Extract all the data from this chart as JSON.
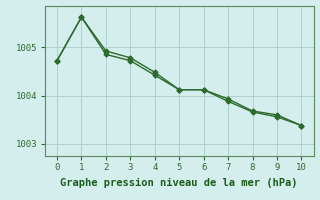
{
  "title": "Graphe pression niveau de la mer (hPa)",
  "x": [
    0,
    1,
    2,
    3,
    4,
    5,
    6,
    7,
    8,
    9,
    10
  ],
  "line1": [
    1004.72,
    1005.62,
    1004.92,
    1004.78,
    1004.48,
    1004.12,
    1004.12,
    1003.88,
    1003.66,
    1003.56,
    1003.38
  ],
  "line2": [
    1004.72,
    1005.62,
    1004.85,
    1004.72,
    1004.42,
    1004.12,
    1004.12,
    1003.93,
    1003.68,
    1003.6,
    1003.38
  ],
  "ylim": [
    1002.75,
    1005.85
  ],
  "xlim": [
    -0.5,
    10.5
  ],
  "yticks": [
    1003,
    1004,
    1005
  ],
  "xticks": [
    0,
    1,
    2,
    3,
    4,
    5,
    6,
    7,
    8,
    9,
    10
  ],
  "line_color": "#2d6a2d",
  "bg_color": "#d4eeed",
  "grid_color": "#aed0ce",
  "title_color": "#1a5c1a",
  "title_fontsize": 7.5,
  "marker": "D",
  "marker_size": 2.5,
  "linewidth": 1.0,
  "tick_fontsize": 6.5,
  "spine_color": "#5a8a5a"
}
